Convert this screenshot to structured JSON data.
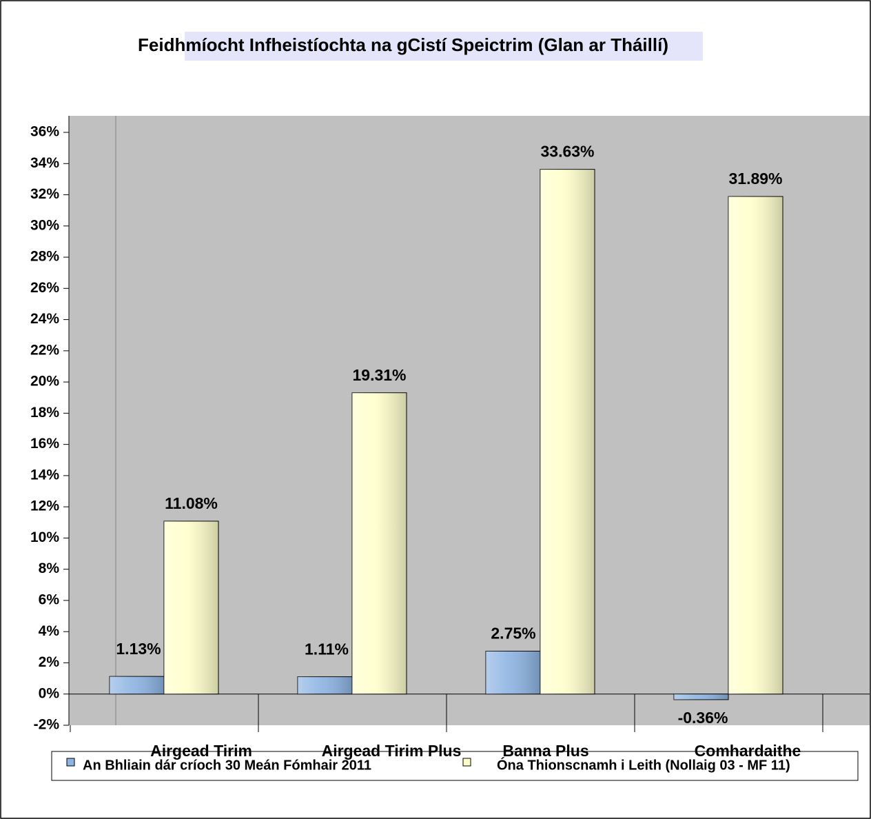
{
  "chart_data": {
    "type": "bar",
    "title": "Feidhmíocht Infheistíochta na gCistí Speictrim (Glan ar Tháillí)",
    "categories": [
      "Airgead Tirim",
      "Airgead Tirim  Plus",
      "Banna Plus",
      "Comhardaithe"
    ],
    "series": [
      {
        "name": "An Bhliain dár críoch 30 Meán Fómhair 2011",
        "color": "#8db4e2",
        "values": [
          1.13,
          1.11,
          2.75,
          -0.36
        ],
        "value_labels": [
          "1.13%",
          "1.11%",
          "2.75%",
          "-0.36%"
        ]
      },
      {
        "name": "Óna Thionscnamh i Leith (Nollaig 03 - MF 11)",
        "color": "#ffffcc",
        "values": [
          11.08,
          19.31,
          33.63,
          31.89
        ],
        "value_labels": [
          "11.08%",
          "19.31%",
          "33.63%",
          "31.89%"
        ]
      }
    ],
    "ylim": [
      -2,
      36
    ],
    "yticks": [
      {
        "value": -2,
        "label": "-2%"
      },
      {
        "value": 0,
        "label": "0%"
      },
      {
        "value": 2,
        "label": "2%"
      },
      {
        "value": 4,
        "label": "4%"
      },
      {
        "value": 6,
        "label": "6%"
      },
      {
        "value": 8,
        "label": "8%"
      },
      {
        "value": 10,
        "label": "10%"
      },
      {
        "value": 12,
        "label": "12%"
      },
      {
        "value": 14,
        "label": "14%"
      },
      {
        "value": 16,
        "label": "16%"
      },
      {
        "value": 18,
        "label": "18%"
      },
      {
        "value": 20,
        "label": "20%"
      },
      {
        "value": 22,
        "label": "22%"
      },
      {
        "value": 24,
        "label": "24%"
      },
      {
        "value": 26,
        "label": "26%"
      },
      {
        "value": 28,
        "label": "28%"
      },
      {
        "value": 30,
        "label": "30%"
      },
      {
        "value": 32,
        "label": "32%"
      },
      {
        "value": 34,
        "label": "34%"
      },
      {
        "value": 36,
        "label": "36%"
      }
    ],
    "legend": "bottom"
  }
}
